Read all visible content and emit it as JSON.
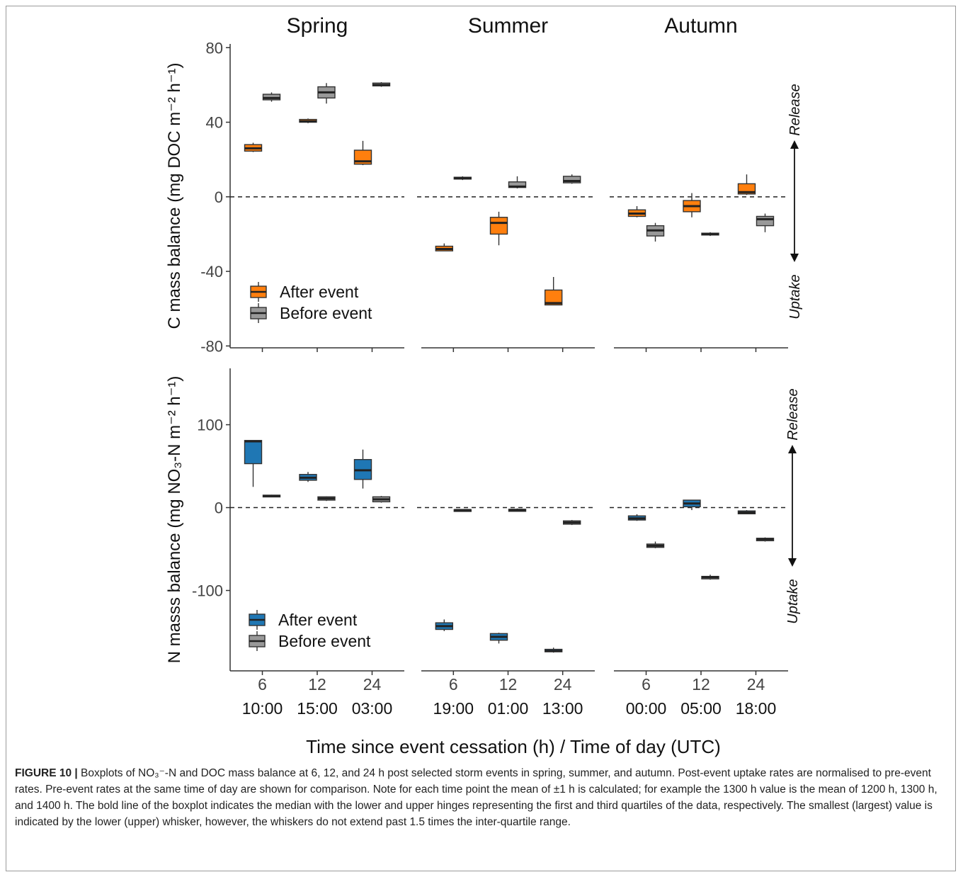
{
  "figure": {
    "label": "FIGURE 10 |",
    "caption_text": " Boxplots of NO₃⁻-N and DOC mass balance at 6, 12, and 24 h post selected storm events in spring, summer, and autumn. Post-event uptake rates are normalised to pre-event rates. Pre-event rates at the same time of day are shown for comparison. Note for each time point the mean of ±1 h is calculated; for example the 1300 h value is the mean of 1200 h, 1300 h, and 1400 h. The bold line of the boxplot indicates the median with the lower and upper hinges representing the first and third quartiles of the data, respectively. The smallest (largest) value is indicated by the lower (upper) whisker, however, the whiskers do not extend past 1.5 times the inter-quartile range."
  },
  "chart_data": {
    "type": "boxplot",
    "facets": [
      "Spring",
      "Summer",
      "Autumn"
    ],
    "xlabel": "Time since event cessation (h) / Time of day (UTC)",
    "x_ticks": [
      "6",
      "12",
      "24"
    ],
    "time_of_day": {
      "Spring": [
        "10:00",
        "15:00",
        "03:00"
      ],
      "Summer": [
        "19:00",
        "01:00",
        "13:00"
      ],
      "Autumn": [
        "00:00",
        "05:00",
        "18:00"
      ]
    },
    "colors": {
      "after_c": "#ff7f0e",
      "after_n": "#1f77b4",
      "before": "#999999"
    },
    "arrow_labels": {
      "up": "Release",
      "down": "Uptake"
    },
    "panels": [
      {
        "id": "C",
        "ylabel": "C mass balance (mg DOC m⁻² h⁻¹)",
        "ylim": [
          -81,
          82
        ],
        "yticks": [
          -80,
          -40,
          0,
          40,
          80
        ],
        "legend": [
          "After event",
          "Before event"
        ],
        "after": [
          [
            {
              "min": 24,
              "q1": 24.5,
              "med": 26,
              "q3": 28,
              "max": 29
            },
            {
              "min": 39.5,
              "q1": 40,
              "med": 40.5,
              "q3": 41.5,
              "max": 42
            },
            {
              "min": 17,
              "q1": 17.5,
              "med": 19,
              "q3": 25,
              "max": 30
            }
          ],
          [
            {
              "min": -29,
              "q1": -29,
              "med": -28,
              "q3": -26.5,
              "max": -25
            },
            {
              "min": -26,
              "q1": -20,
              "med": -14,
              "q3": -11,
              "max": -8
            },
            {
              "min": -58,
              "q1": -58,
              "med": -57,
              "q3": -50,
              "max": -43
            }
          ],
          [
            {
              "min": -11,
              "q1": -10.5,
              "med": -9,
              "q3": -7,
              "max": -5
            },
            {
              "min": -11,
              "q1": -8,
              "med": -5,
              "q3": -2,
              "max": 2
            },
            {
              "min": 1,
              "q1": 1.5,
              "med": 2.5,
              "q3": 7,
              "max": 12
            }
          ]
        ],
        "before": [
          [
            {
              "min": 51,
              "q1": 52,
              "med": 53,
              "q3": 55,
              "max": 56
            },
            {
              "min": 50,
              "q1": 53,
              "med": 56,
              "q3": 59,
              "max": 61
            },
            {
              "min": 59,
              "q1": 59.5,
              "med": 60,
              "q3": 61,
              "max": 61.5
            }
          ],
          [
            {
              "min": 9,
              "q1": 9.5,
              "med": 10,
              "q3": 10.5,
              "max": 11
            },
            {
              "min": 4.5,
              "q1": 5,
              "med": 5.5,
              "q3": 8,
              "max": 11
            },
            {
              "min": 7,
              "q1": 7.5,
              "med": 8.5,
              "q3": 11,
              "max": 12
            }
          ],
          [
            {
              "min": -24,
              "q1": -21,
              "med": -18,
              "q3": -15.5,
              "max": -14
            },
            {
              "min": -21,
              "q1": -20.5,
              "med": -20,
              "q3": -19.5,
              "max": -19
            },
            {
              "min": -19,
              "q1": -15.5,
              "med": -12,
              "q3": -10.5,
              "max": -9
            }
          ]
        ]
      },
      {
        "id": "N",
        "ylabel": "N masss balance (mg NO₃-N m⁻² h⁻¹)",
        "ylim": [
          -197,
          168
        ],
        "yticks": [
          -100,
          0,
          100
        ],
        "legend": [
          "After event",
          "Before event"
        ],
        "after": [
          [
            {
              "min": 25,
              "q1": 53,
              "med": 80,
              "q3": 81,
              "max": 81
            },
            {
              "min": 31,
              "q1": 33,
              "med": 36,
              "q3": 40,
              "max": 43
            },
            {
              "min": 23,
              "q1": 34,
              "med": 45,
              "q3": 58,
              "max": 70
            }
          ],
          [
            {
              "min": -149,
              "q1": -147,
              "med": -143,
              "q3": -139,
              "max": -135
            },
            {
              "min": -164,
              "q1": -160,
              "med": -156,
              "q3": -152,
              "max": -151
            },
            {
              "min": -175,
              "q1": -174,
              "med": -173,
              "q3": -171,
              "max": -169
            }
          ],
          [
            {
              "min": -16,
              "q1": -15,
              "med": -13,
              "q3": -10,
              "max": -8
            },
            {
              "min": -3,
              "q1": 1,
              "med": 5,
              "q3": 9,
              "max": 9
            },
            {
              "min": -8,
              "q1": -7.5,
              "med": -6,
              "q3": -4,
              "max": -3
            }
          ]
        ],
        "before": [
          [
            {
              "min": 13,
              "q1": 13.5,
              "med": 14,
              "q3": 15,
              "max": 15.5
            },
            {
              "min": 8,
              "q1": 9,
              "med": 11,
              "q3": 13,
              "max": 13.5
            },
            {
              "min": 6,
              "q1": 7,
              "med": 10,
              "q3": 13,
              "max": 14
            }
          ],
          [
            {
              "min": -4,
              "q1": -4,
              "med": -3,
              "q3": -2.5,
              "max": -2
            },
            {
              "min": -5,
              "q1": -4.5,
              "med": -3,
              "q3": -2,
              "max": -1
            },
            {
              "min": -21,
              "q1": -20,
              "med": -18,
              "q3": -16,
              "max": -15
            }
          ],
          [
            {
              "min": -49,
              "q1": -48,
              "med": -46,
              "q3": -44,
              "max": -41
            },
            {
              "min": -87,
              "q1": -86,
              "med": -84,
              "q3": -83,
              "max": -81
            },
            {
              "min": -41,
              "q1": -40,
              "med": -38,
              "q3": -37,
              "max": -36
            }
          ]
        ]
      }
    ]
  }
}
